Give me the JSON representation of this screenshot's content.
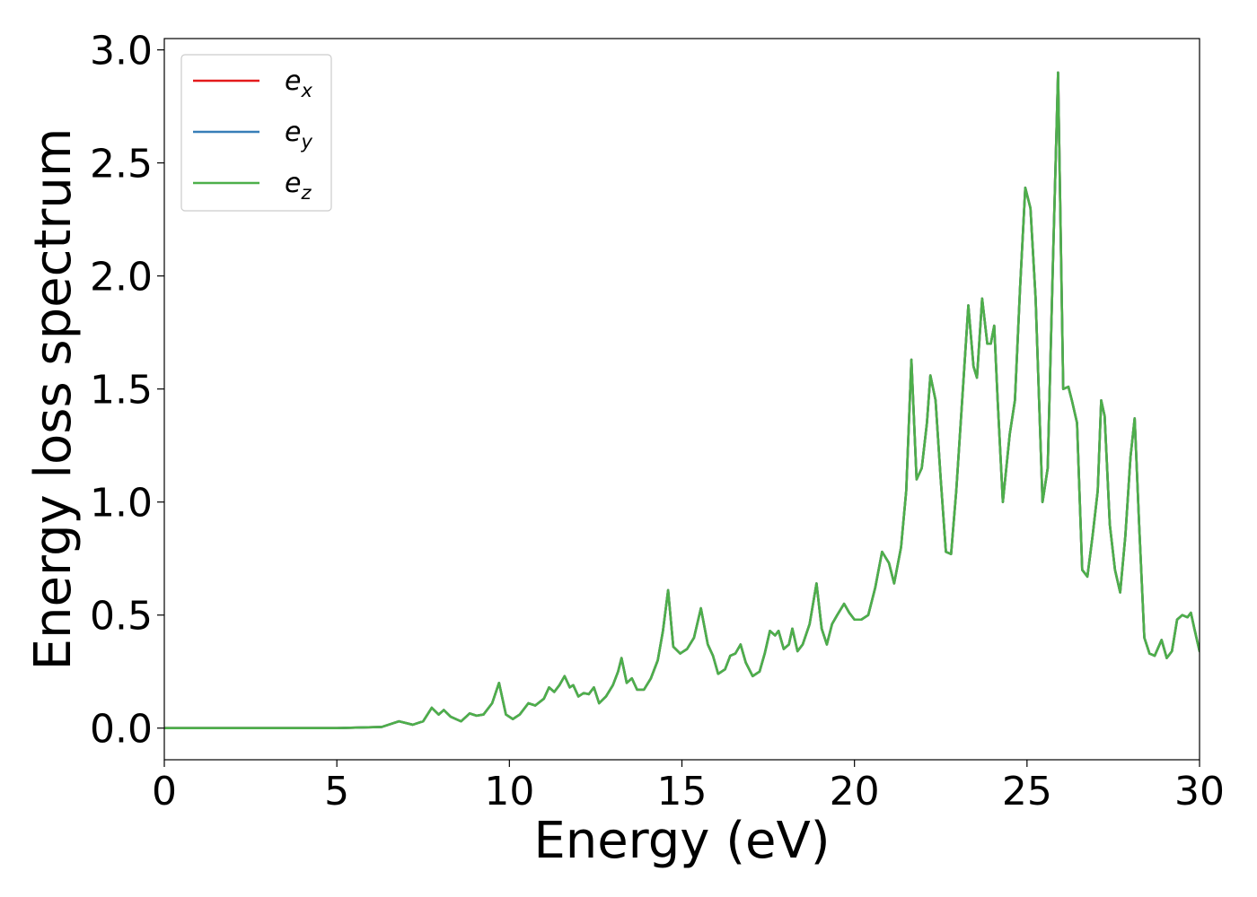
{
  "chart_data": {
    "type": "line",
    "title": "",
    "xlabel": "Energy (eV)",
    "ylabel": "Energy loss spectrum",
    "xlim": [
      0,
      30
    ],
    "ylim": [
      -0.14,
      3.05
    ],
    "xticks": [
      0,
      5,
      10,
      15,
      20,
      25,
      30
    ],
    "xtick_labels": [
      "0",
      "5",
      "10",
      "15",
      "20",
      "25",
      "30"
    ],
    "yticks": [
      0.0,
      0.5,
      1.0,
      1.5,
      2.0,
      2.5,
      3.0
    ],
    "ytick_labels": [
      "0.0",
      "0.5",
      "1.0",
      "1.5",
      "2.0",
      "2.5",
      "3.0"
    ],
    "grid": false,
    "legend_position": "top-left",
    "series": [
      {
        "name": "e_x",
        "legend_base": "e",
        "legend_sub": "x",
        "color": "#e41a1c",
        "x": [
          0,
          5,
          6.3,
          6.8,
          7.2,
          7.5,
          7.75,
          7.95,
          8.1,
          8.3,
          8.6,
          8.85,
          9.05,
          9.25,
          9.5,
          9.7,
          9.9,
          10.1,
          10.3,
          10.55,
          10.75,
          11.0,
          11.15,
          11.3,
          11.45,
          11.6,
          11.75,
          11.85,
          12.0,
          12.15,
          12.3,
          12.45,
          12.6,
          12.8,
          13.0,
          13.15,
          13.25,
          13.4,
          13.55,
          13.7,
          13.9,
          14.1,
          14.3,
          14.45,
          14.6,
          14.75,
          14.95,
          15.15,
          15.35,
          15.55,
          15.75,
          15.9,
          16.05,
          16.25,
          16.4,
          16.55,
          16.7,
          16.85,
          17.05,
          17.25,
          17.4,
          17.55,
          17.7,
          17.8,
          17.95,
          18.1,
          18.2,
          18.35,
          18.5,
          18.7,
          18.9,
          19.05,
          19.2,
          19.35,
          19.5,
          19.7,
          19.85,
          20.0,
          20.2,
          20.4,
          20.6,
          20.8,
          21.0,
          21.15,
          21.35,
          21.5,
          21.65,
          21.8,
          21.95,
          22.1,
          22.2,
          22.35,
          22.5,
          22.65,
          22.8,
          22.95,
          23.1,
          23.3,
          23.45,
          23.55,
          23.7,
          23.85,
          23.95,
          24.05,
          24.15,
          24.3,
          24.5,
          24.65,
          24.8,
          24.95,
          25.1,
          25.25,
          25.45,
          25.6,
          25.75,
          25.9,
          26.05,
          26.2,
          26.3,
          26.45,
          26.6,
          26.75,
          26.9,
          27.05,
          27.15,
          27.25,
          27.4,
          27.55,
          27.7,
          27.85,
          28.0,
          28.12,
          28.25,
          28.4,
          28.55,
          28.7,
          28.9,
          29.05,
          29.2,
          29.35,
          29.5,
          29.65,
          29.75,
          29.85,
          30.0
        ],
        "values": [
          0.0,
          0.0,
          0.005,
          0.03,
          0.015,
          0.03,
          0.09,
          0.06,
          0.08,
          0.05,
          0.03,
          0.065,
          0.055,
          0.06,
          0.11,
          0.2,
          0.06,
          0.04,
          0.06,
          0.11,
          0.1,
          0.13,
          0.18,
          0.16,
          0.19,
          0.23,
          0.18,
          0.19,
          0.14,
          0.155,
          0.15,
          0.18,
          0.11,
          0.14,
          0.19,
          0.25,
          0.31,
          0.2,
          0.22,
          0.17,
          0.17,
          0.22,
          0.3,
          0.43,
          0.61,
          0.36,
          0.33,
          0.35,
          0.4,
          0.53,
          0.37,
          0.32,
          0.24,
          0.26,
          0.32,
          0.33,
          0.37,
          0.29,
          0.23,
          0.25,
          0.33,
          0.43,
          0.41,
          0.43,
          0.35,
          0.37,
          0.44,
          0.34,
          0.37,
          0.46,
          0.64,
          0.44,
          0.37,
          0.46,
          0.5,
          0.55,
          0.51,
          0.48,
          0.48,
          0.5,
          0.62,
          0.78,
          0.73,
          0.64,
          0.8,
          1.05,
          1.63,
          1.1,
          1.15,
          1.35,
          1.56,
          1.45,
          1.1,
          0.78,
          0.77,
          1.05,
          1.4,
          1.87,
          1.6,
          1.55,
          1.9,
          1.7,
          1.7,
          1.78,
          1.45,
          1.0,
          1.3,
          1.45,
          1.95,
          2.39,
          2.3,
          1.9,
          1.0,
          1.15,
          2.05,
          2.9,
          1.5,
          1.51,
          1.45,
          1.35,
          0.7,
          0.67,
          0.85,
          1.05,
          1.45,
          1.38,
          0.9,
          0.7,
          0.6,
          0.85,
          1.2,
          1.37,
          0.9,
          0.4,
          0.33,
          0.32,
          0.39,
          0.31,
          0.34,
          0.48,
          0.5,
          0.49,
          0.51,
          0.44,
          0.34
        ]
      },
      {
        "name": "e_y",
        "legend_base": "e",
        "legend_sub": "y",
        "color": "#377eb8",
        "x": [
          0,
          5,
          6.3,
          6.8,
          7.2,
          7.5,
          7.75,
          7.95,
          8.1,
          8.3,
          8.6,
          8.85,
          9.05,
          9.25,
          9.5,
          9.7,
          9.9,
          10.1,
          10.3,
          10.55,
          10.75,
          11.0,
          11.15,
          11.3,
          11.45,
          11.6,
          11.75,
          11.85,
          12.0,
          12.15,
          12.3,
          12.45,
          12.6,
          12.8,
          13.0,
          13.15,
          13.25,
          13.4,
          13.55,
          13.7,
          13.9,
          14.1,
          14.3,
          14.45,
          14.6,
          14.75,
          14.95,
          15.15,
          15.35,
          15.55,
          15.75,
          15.9,
          16.05,
          16.25,
          16.4,
          16.55,
          16.7,
          16.85,
          17.05,
          17.25,
          17.4,
          17.55,
          17.7,
          17.8,
          17.95,
          18.1,
          18.2,
          18.35,
          18.5,
          18.7,
          18.9,
          19.05,
          19.2,
          19.35,
          19.5,
          19.7,
          19.85,
          20.0,
          20.2,
          20.4,
          20.6,
          20.8,
          21.0,
          21.15,
          21.35,
          21.5,
          21.65,
          21.8,
          21.95,
          22.1,
          22.2,
          22.35,
          22.5,
          22.65,
          22.8,
          22.95,
          23.1,
          23.3,
          23.45,
          23.55,
          23.7,
          23.85,
          23.95,
          24.05,
          24.15,
          24.3,
          24.5,
          24.65,
          24.8,
          24.95,
          25.1,
          25.25,
          25.45,
          25.6,
          25.75,
          25.9,
          26.05,
          26.2,
          26.3,
          26.45,
          26.6,
          26.75,
          26.9,
          27.05,
          27.15,
          27.25,
          27.4,
          27.55,
          27.7,
          27.85,
          28.0,
          28.12,
          28.25,
          28.4,
          28.55,
          28.7,
          28.9,
          29.05,
          29.2,
          29.35,
          29.5,
          29.65,
          29.75,
          29.85,
          30.0
        ],
        "values": [
          0.0,
          0.0,
          0.005,
          0.03,
          0.015,
          0.03,
          0.09,
          0.06,
          0.08,
          0.05,
          0.03,
          0.065,
          0.055,
          0.06,
          0.11,
          0.2,
          0.06,
          0.04,
          0.06,
          0.11,
          0.1,
          0.13,
          0.18,
          0.16,
          0.19,
          0.23,
          0.18,
          0.19,
          0.14,
          0.155,
          0.15,
          0.18,
          0.11,
          0.14,
          0.19,
          0.25,
          0.31,
          0.2,
          0.22,
          0.17,
          0.17,
          0.22,
          0.3,
          0.43,
          0.61,
          0.36,
          0.33,
          0.35,
          0.4,
          0.53,
          0.37,
          0.32,
          0.24,
          0.26,
          0.32,
          0.33,
          0.37,
          0.29,
          0.23,
          0.25,
          0.33,
          0.43,
          0.41,
          0.43,
          0.35,
          0.37,
          0.44,
          0.34,
          0.37,
          0.46,
          0.64,
          0.44,
          0.37,
          0.46,
          0.5,
          0.55,
          0.51,
          0.48,
          0.48,
          0.5,
          0.62,
          0.78,
          0.73,
          0.64,
          0.8,
          1.05,
          1.63,
          1.1,
          1.15,
          1.35,
          1.56,
          1.45,
          1.1,
          0.78,
          0.77,
          1.05,
          1.4,
          1.87,
          1.6,
          1.55,
          1.9,
          1.7,
          1.7,
          1.78,
          1.45,
          1.0,
          1.3,
          1.45,
          1.95,
          2.39,
          2.3,
          1.9,
          1.0,
          1.15,
          2.05,
          2.9,
          1.5,
          1.51,
          1.45,
          1.35,
          0.7,
          0.67,
          0.85,
          1.05,
          1.45,
          1.38,
          0.9,
          0.7,
          0.6,
          0.85,
          1.2,
          1.37,
          0.9,
          0.4,
          0.33,
          0.32,
          0.39,
          0.31,
          0.34,
          0.48,
          0.5,
          0.49,
          0.51,
          0.44,
          0.34
        ]
      },
      {
        "name": "e_z",
        "legend_base": "e",
        "legend_sub": "z",
        "color": "#4daf4a",
        "x": [
          0,
          5,
          6.3,
          6.8,
          7.2,
          7.5,
          7.75,
          7.95,
          8.1,
          8.3,
          8.6,
          8.85,
          9.05,
          9.25,
          9.5,
          9.7,
          9.9,
          10.1,
          10.3,
          10.55,
          10.75,
          11.0,
          11.15,
          11.3,
          11.45,
          11.6,
          11.75,
          11.85,
          12.0,
          12.15,
          12.3,
          12.45,
          12.6,
          12.8,
          13.0,
          13.15,
          13.25,
          13.4,
          13.55,
          13.7,
          13.9,
          14.1,
          14.3,
          14.45,
          14.6,
          14.75,
          14.95,
          15.15,
          15.35,
          15.55,
          15.75,
          15.9,
          16.05,
          16.25,
          16.4,
          16.55,
          16.7,
          16.85,
          17.05,
          17.25,
          17.4,
          17.55,
          17.7,
          17.8,
          17.95,
          18.1,
          18.2,
          18.35,
          18.5,
          18.7,
          18.9,
          19.05,
          19.2,
          19.35,
          19.5,
          19.7,
          19.85,
          20.0,
          20.2,
          20.4,
          20.6,
          20.8,
          21.0,
          21.15,
          21.35,
          21.5,
          21.65,
          21.8,
          21.95,
          22.1,
          22.2,
          22.35,
          22.5,
          22.65,
          22.8,
          22.95,
          23.1,
          23.3,
          23.45,
          23.55,
          23.7,
          23.85,
          23.95,
          24.05,
          24.15,
          24.3,
          24.5,
          24.65,
          24.8,
          24.95,
          25.1,
          25.25,
          25.45,
          25.6,
          25.75,
          25.9,
          26.05,
          26.2,
          26.3,
          26.45,
          26.6,
          26.75,
          26.9,
          27.05,
          27.15,
          27.25,
          27.4,
          27.55,
          27.7,
          27.85,
          28.0,
          28.12,
          28.25,
          28.4,
          28.55,
          28.7,
          28.9,
          29.05,
          29.2,
          29.35,
          29.5,
          29.65,
          29.75,
          29.85,
          30.0
        ],
        "values": [
          0.0,
          0.0,
          0.005,
          0.03,
          0.015,
          0.03,
          0.09,
          0.06,
          0.08,
          0.05,
          0.03,
          0.065,
          0.055,
          0.06,
          0.11,
          0.2,
          0.06,
          0.04,
          0.06,
          0.11,
          0.1,
          0.13,
          0.18,
          0.16,
          0.19,
          0.23,
          0.18,
          0.19,
          0.14,
          0.155,
          0.15,
          0.18,
          0.11,
          0.14,
          0.19,
          0.25,
          0.31,
          0.2,
          0.22,
          0.17,
          0.17,
          0.22,
          0.3,
          0.43,
          0.61,
          0.36,
          0.33,
          0.35,
          0.4,
          0.53,
          0.37,
          0.32,
          0.24,
          0.26,
          0.32,
          0.33,
          0.37,
          0.29,
          0.23,
          0.25,
          0.33,
          0.43,
          0.41,
          0.43,
          0.35,
          0.37,
          0.44,
          0.34,
          0.37,
          0.46,
          0.64,
          0.44,
          0.37,
          0.46,
          0.5,
          0.55,
          0.51,
          0.48,
          0.48,
          0.5,
          0.62,
          0.78,
          0.73,
          0.64,
          0.8,
          1.05,
          1.63,
          1.1,
          1.15,
          1.35,
          1.56,
          1.45,
          1.1,
          0.78,
          0.77,
          1.05,
          1.4,
          1.87,
          1.6,
          1.55,
          1.9,
          1.7,
          1.7,
          1.78,
          1.45,
          1.0,
          1.3,
          1.45,
          1.95,
          2.39,
          2.3,
          1.9,
          1.0,
          1.15,
          2.05,
          2.9,
          1.5,
          1.51,
          1.45,
          1.35,
          0.7,
          0.67,
          0.85,
          1.05,
          1.45,
          1.38,
          0.9,
          0.7,
          0.6,
          0.85,
          1.2,
          1.37,
          0.9,
          0.4,
          0.33,
          0.32,
          0.39,
          0.31,
          0.34,
          0.48,
          0.5,
          0.49,
          0.51,
          0.44,
          0.34
        ]
      }
    ]
  }
}
